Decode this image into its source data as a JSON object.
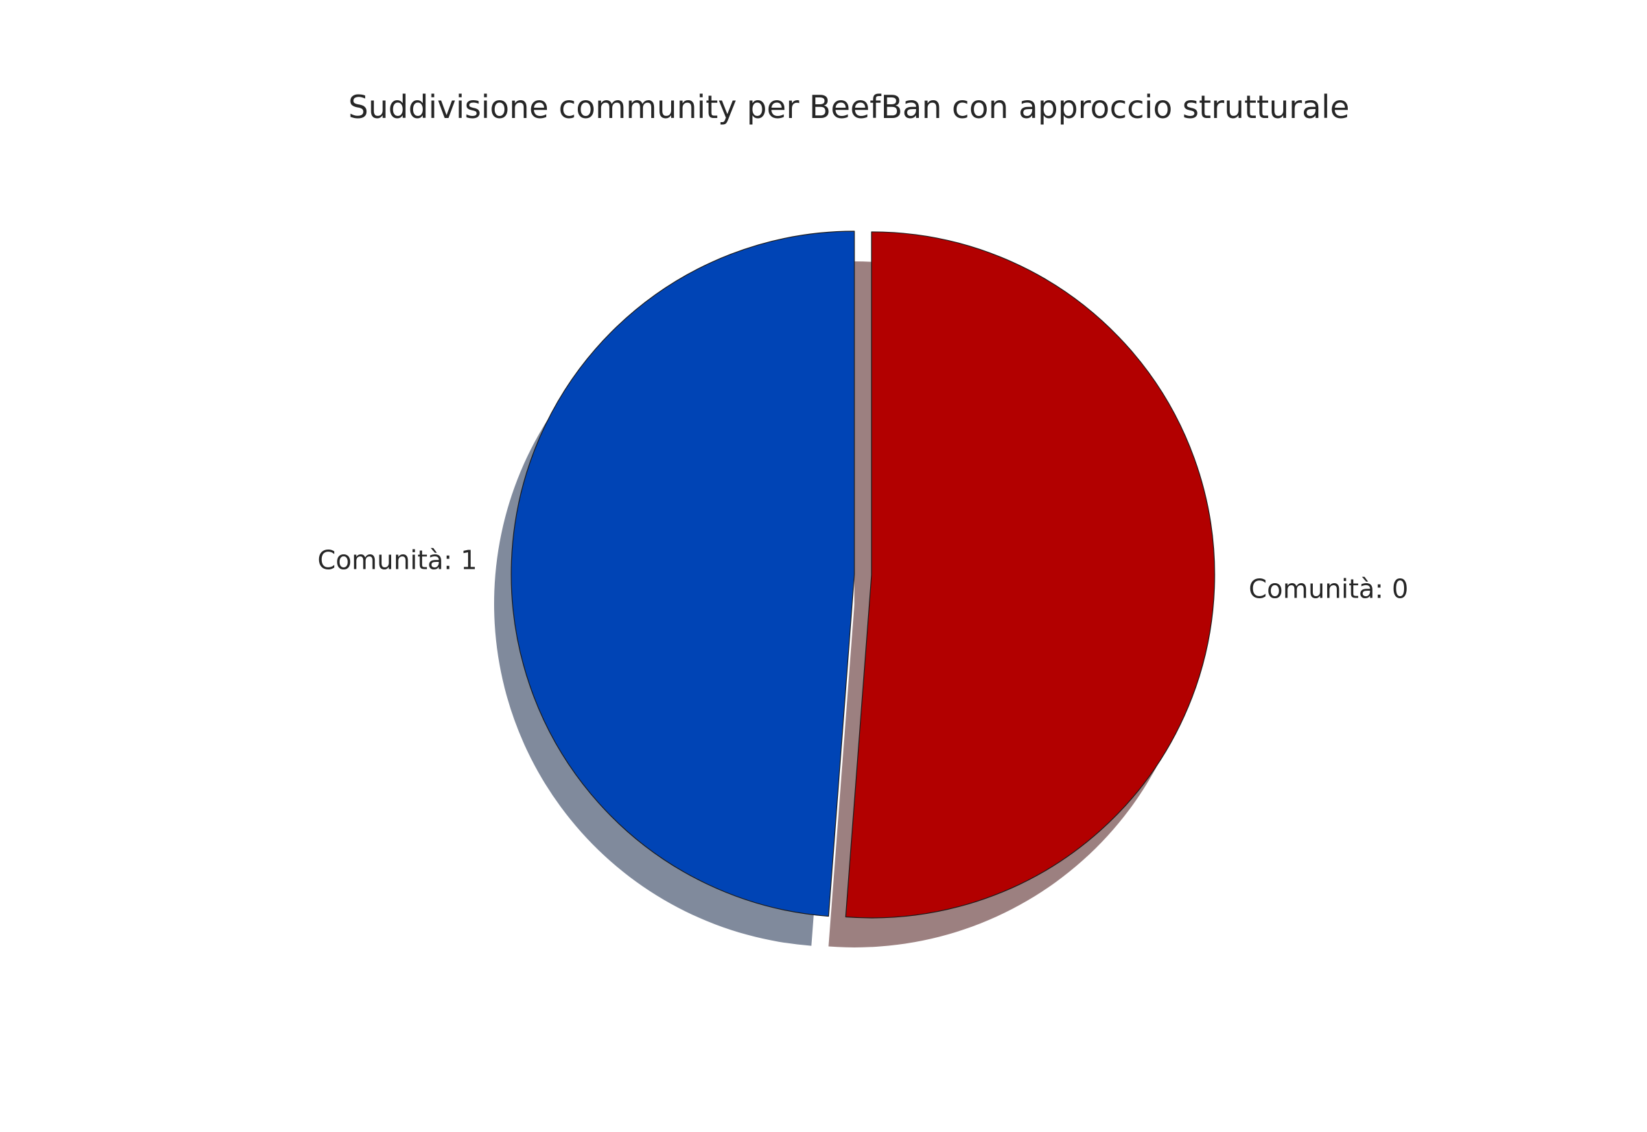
{
  "chart_data": {
    "type": "pie",
    "title": "Suddivisione community per BeefBan con approccio strutturale",
    "categories": [
      "Comunità: 0",
      "Comunità: 1"
    ],
    "values": [
      51.2,
      48.8
    ],
    "colors": [
      "#b20000",
      "#0044b5"
    ],
    "shadow_colors": [
      "#9c8080",
      "#808a9c"
    ],
    "start_angle_deg": 90,
    "direction": "clockwise",
    "exploded": [
      true,
      false
    ],
    "shadow": true,
    "edge_color": "#1a1a1a"
  }
}
